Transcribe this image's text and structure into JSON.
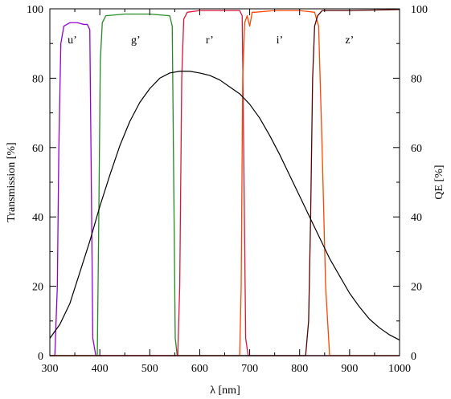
{
  "chart_data": {
    "type": "line",
    "xlabel": "λ [nm]",
    "ylabel_left": "Transmission [%]",
    "ylabel_right": "QE [%]",
    "xlim": [
      300,
      1000
    ],
    "ylim": [
      0,
      100
    ],
    "y2lim": [
      0,
      100
    ],
    "x_ticks": [
      "300",
      "400",
      "500",
      "600",
      "700",
      "800",
      "900",
      "1000"
    ],
    "y_ticks": [
      "0",
      "20",
      "40",
      "60",
      "80",
      "100"
    ],
    "y2_ticks": [
      "0",
      "20",
      "40",
      "60",
      "80",
      "100"
    ],
    "grid": false,
    "band_labels": [
      {
        "text": "u’",
        "x": 345,
        "y": 90
      },
      {
        "text": "g’",
        "x": 472,
        "y": 90
      },
      {
        "text": "r’",
        "x": 620,
        "y": 90
      },
      {
        "text": "i’",
        "x": 760,
        "y": 90
      },
      {
        "text": "z’",
        "x": 900,
        "y": 90
      }
    ],
    "series": [
      {
        "color": "#9400d3",
        "axis": "left",
        "x": [
          300,
          310,
          315,
          318,
          322,
          328,
          340,
          355,
          368,
          375,
          380,
          383,
          386,
          392,
          1000
        ],
        "y": [
          0,
          0,
          20,
          60,
          90,
          95,
          96,
          96,
          95.5,
          95.5,
          94,
          50,
          5,
          0,
          0
        ]
      },
      {
        "color": "#228b22",
        "axis": "left",
        "x": [
          300,
          395,
          398,
          401,
          405,
          412,
          450,
          500,
          540,
          545,
          548,
          551,
          555,
          1000
        ],
        "y": [
          0,
          0,
          40,
          85,
          96,
          98,
          98.5,
          98.5,
          98,
          95,
          50,
          5,
          0,
          0
        ]
      },
      {
        "color": "#dc143c",
        "axis": "left",
        "x": [
          300,
          556,
          560,
          564,
          568,
          575,
          600,
          650,
          680,
          685,
          688,
          692,
          697,
          1000
        ],
        "y": [
          0,
          0,
          20,
          80,
          97,
          99,
          99.5,
          99.5,
          99.5,
          98,
          60,
          5,
          0,
          0
        ]
      },
      {
        "color": "#ff4500",
        "axis": "left",
        "x": [
          300,
          680,
          683,
          686,
          690,
          695,
          700,
          705,
          710,
          750,
          800,
          830,
          838,
          845,
          852,
          860,
          1000
        ],
        "y": [
          0,
          0,
          20,
          80,
          96,
          98,
          95,
          99,
          99,
          99.5,
          99.5,
          99,
          95,
          60,
          20,
          0,
          0
        ]
      },
      {
        "color": "#5a0000",
        "axis": "left",
        "x": [
          300,
          812,
          818,
          822,
          826,
          830,
          836,
          845,
          900,
          1000
        ],
        "y": [
          0,
          0,
          10,
          40,
          80,
          95,
          98,
          99.5,
          99.5,
          99.8
        ]
      },
      {
        "color": "#000000",
        "axis": "right",
        "x": [
          300,
          320,
          340,
          360,
          380,
          400,
          420,
          440,
          460,
          480,
          500,
          520,
          540,
          560,
          580,
          600,
          620,
          640,
          660,
          680,
          700,
          720,
          740,
          760,
          780,
          800,
          820,
          840,
          860,
          880,
          900,
          920,
          940,
          960,
          980,
          1000
        ],
        "y": [
          5,
          9,
          15,
          24,
          33,
          43,
          52,
          60.5,
          67.5,
          73,
          77,
          80,
          81.5,
          82,
          82,
          81.5,
          80.8,
          79.5,
          77.5,
          75.5,
          72.5,
          68.5,
          63.5,
          58,
          52,
          46,
          40,
          34,
          28,
          23,
          18,
          14,
          10.5,
          8,
          6,
          4.5
        ]
      }
    ]
  }
}
